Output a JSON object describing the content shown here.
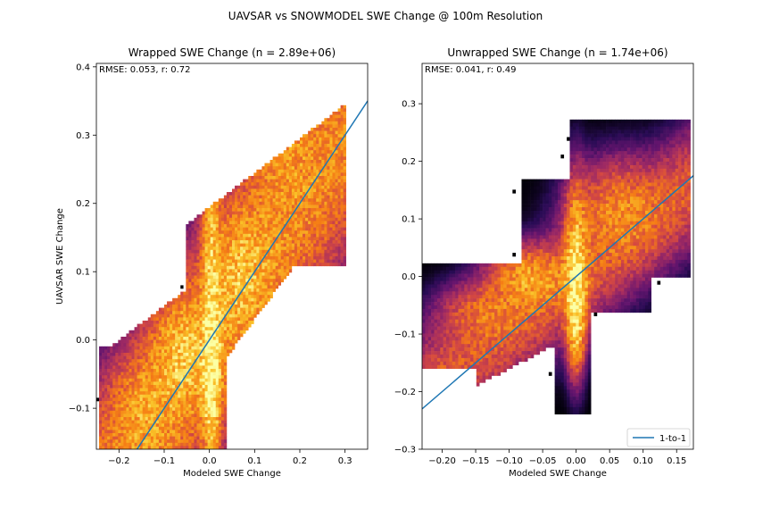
{
  "figure": {
    "suptitle": "UAVSAR vs SNOWMODEL SWE Change @ 100m Resolution"
  },
  "colors": {
    "line": "#1f77b4",
    "colormap": "inferno"
  },
  "chart_data": [
    {
      "type": "heatmap",
      "title": "Wrapped SWE Change (n = 2.89e+06)",
      "xlabel": "Modeled SWE Change",
      "ylabel": "UAVSAR SWE Change",
      "xlim": [
        -0.25,
        0.35
      ],
      "ylim": [
        -0.16,
        0.405
      ],
      "xticks": [
        -0.2,
        -0.1,
        0.0,
        0.1,
        0.2,
        0.3
      ],
      "xtick_labels": [
        "−0.2",
        "−0.1",
        "0.0",
        "0.1",
        "0.2",
        "0.3"
      ],
      "yticks": [
        -0.1,
        0.0,
        0.1,
        0.2,
        0.3,
        0.4
      ],
      "ytick_labels": [
        "−0.1",
        "0.0",
        "0.1",
        "0.2",
        "0.3",
        "0.4"
      ],
      "annotation": "RMSE: 0.053, r: 0.72",
      "reference_line": {
        "slope": 1,
        "intercept": 0
      },
      "legend": null
    },
    {
      "type": "heatmap",
      "title": "Unwrapped SWE Change (n = 1.74e+06)",
      "xlabel": "Modeled SWE Change",
      "ylabel": "",
      "xlim": [
        -0.23,
        0.175
      ],
      "ylim": [
        -0.3,
        0.37
      ],
      "xticks": [
        -0.2,
        -0.15,
        -0.1,
        -0.05,
        0.0,
        0.05,
        0.1,
        0.15
      ],
      "xtick_labels": [
        "−0.20",
        "−0.15",
        "−0.10",
        "−0.05",
        "0.00",
        "0.05",
        "0.10",
        "0.15"
      ],
      "yticks": [
        -0.3,
        -0.2,
        -0.1,
        0.0,
        0.1,
        0.2,
        0.3
      ],
      "ytick_labels": [
        "−0.3",
        "−0.2",
        "−0.1",
        "0.0",
        "0.1",
        "0.2",
        "0.3"
      ],
      "annotation": "RMSE: 0.041, r: 0.49",
      "reference_line": {
        "slope": 1,
        "intercept": 0
      },
      "legend": {
        "label": "1-to-1",
        "placement": "lower-right"
      }
    }
  ]
}
